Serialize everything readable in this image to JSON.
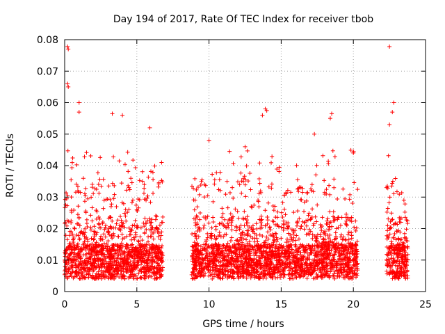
{
  "chart_data": {
    "type": "scatter",
    "title": "Day 194 of 2017, Rate Of TEC Index for receiver tbob",
    "xlabel": "GPS time / hours",
    "ylabel": "ROTI / TECUs",
    "xlim": [
      0,
      25
    ],
    "ylim": [
      0,
      0.08
    ],
    "xticks": [
      "0",
      "5",
      "10",
      "15",
      "20",
      "25"
    ],
    "yticks": [
      "0",
      "0.01",
      "0.02",
      "0.03",
      "0.04",
      "0.05",
      "0.06",
      "0.07",
      "0.08"
    ],
    "grid": true,
    "marker": "+",
    "color": "#ff0000",
    "segments": [
      {
        "x_start": 0.0,
        "x_end": 6.8
      },
      {
        "x_start": 8.8,
        "x_end": 20.3
      },
      {
        "x_start": 22.3,
        "x_end": 23.8
      }
    ],
    "notable_points": [
      {
        "x": 0.2,
        "y": 0.0778
      },
      {
        "x": 0.25,
        "y": 0.077
      },
      {
        "x": 0.2,
        "y": 0.066
      },
      {
        "x": 0.25,
        "y": 0.065
      },
      {
        "x": 1.0,
        "y": 0.06
      },
      {
        "x": 1.0,
        "y": 0.057
      },
      {
        "x": 3.3,
        "y": 0.0565
      },
      {
        "x": 4.0,
        "y": 0.056
      },
      {
        "x": 5.9,
        "y": 0.052
      },
      {
        "x": 10.0,
        "y": 0.048
      },
      {
        "x": 12.5,
        "y": 0.046
      },
      {
        "x": 13.9,
        "y": 0.058
      },
      {
        "x": 14.0,
        "y": 0.0575
      },
      {
        "x": 13.7,
        "y": 0.056
      },
      {
        "x": 17.3,
        "y": 0.05
      },
      {
        "x": 18.5,
        "y": 0.0565
      },
      {
        "x": 18.4,
        "y": 0.055
      },
      {
        "x": 20.0,
        "y": 0.044
      },
      {
        "x": 22.5,
        "y": 0.0778
      },
      {
        "x": 22.8,
        "y": 0.06
      },
      {
        "x": 22.7,
        "y": 0.057
      },
      {
        "x": 22.5,
        "y": 0.053
      },
      {
        "x": 22.3,
        "y": 0.033
      },
      {
        "x": 23.5,
        "y": 0.029
      }
    ]
  }
}
